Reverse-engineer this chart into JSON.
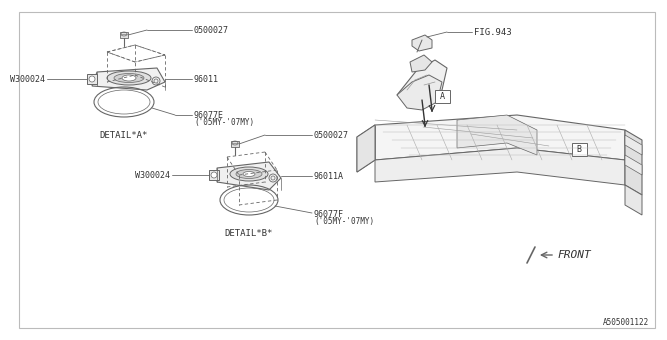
{
  "bg_color": "#ffffff",
  "line_color": "#666666",
  "text_color": "#333333",
  "part_number_bottom": "A505001122",
  "fig_ref": "FIG.943",
  "front_label": "FRONT",
  "detail_a_label": "DETAIL*A*",
  "detail_b_label": "DETAIL*B*",
  "lbl_0500027": "0500027",
  "lbl_96011": "96011",
  "lbl_W300024": "W300024",
  "lbl_96077E": "96077E",
  "lbl_96077E_sub": "('05MY-'07MY)",
  "lbl_96011A": "96011A",
  "lbl_W300024b": "W300024",
  "lbl_96077F": "96077F",
  "lbl_96077F_sub": "('05MY-'07MY)"
}
